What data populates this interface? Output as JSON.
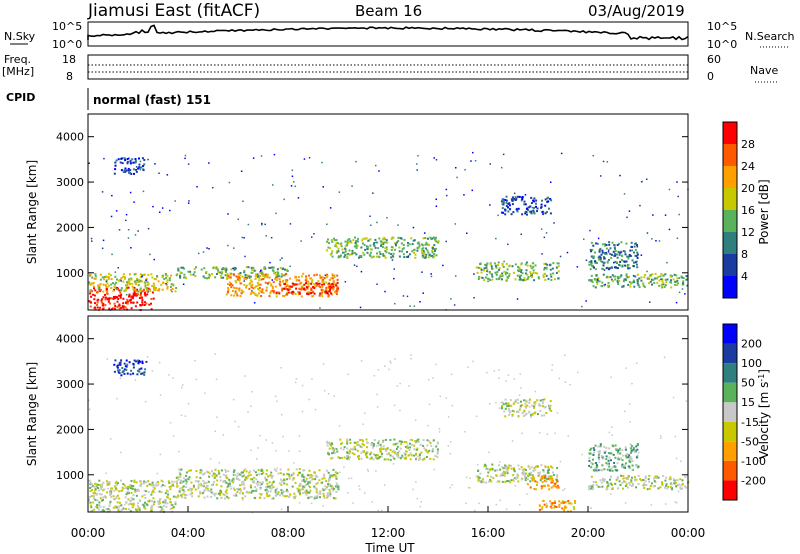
{
  "header": {
    "station": "Jiamusi East (fitACF)",
    "beam": "Beam 16",
    "date": "03/Aug/2019"
  },
  "top_panels": {
    "nsky_label": "N.Sky",
    "nsearch_label": "N.Search",
    "left_ticks": [
      "10^5",
      "10^0"
    ],
    "right_ticks": [
      "10^5",
      "10^0"
    ],
    "freq_label": "Freq.",
    "freq_unit": "[MHz]",
    "freq_ticks": [
      "18",
      "8"
    ],
    "nave_label": "Nave",
    "nave_ticks": [
      "60",
      "0"
    ],
    "cpid_label": "CPID",
    "cpid_value": "normal (fast) 151"
  },
  "chart_data": [
    {
      "type": "heatmap",
      "name": "power",
      "ylabel": "Slant Range [km]",
      "yticks": [
        1000,
        2000,
        3000,
        4000
      ],
      "ylim": [
        180,
        4500
      ],
      "xlim": [
        0,
        24
      ],
      "colorbar": {
        "label": "Power [dB]",
        "ticks": [
          "4",
          "8",
          "12",
          "16",
          "20",
          "24",
          "28"
        ],
        "colors": [
          "#0000ff",
          "#1a3ca0",
          "#2f7f7f",
          "#5ab35a",
          "#c8c800",
          "#ffa000",
          "#ff5a00",
          "#ff0000"
        ]
      },
      "echo_regions": [
        {
          "t0": 0.0,
          "t1": 2.6,
          "r0": 200,
          "r1": 700,
          "level": 7
        },
        {
          "t0": 0.0,
          "t1": 3.5,
          "r0": 600,
          "r1": 1000,
          "level": 4
        },
        {
          "t0": 3.5,
          "t1": 8.0,
          "r0": 900,
          "r1": 1150,
          "level": 3
        },
        {
          "t0": 5.5,
          "t1": 10.0,
          "r0": 500,
          "r1": 1000,
          "level": 5
        },
        {
          "t0": 7.5,
          "t1": 10.0,
          "r0": 550,
          "r1": 800,
          "level": 7
        },
        {
          "t0": 9.5,
          "t1": 14.0,
          "r0": 1350,
          "r1": 1800,
          "level": 3
        },
        {
          "t0": 15.5,
          "t1": 18.8,
          "r0": 850,
          "r1": 1250,
          "level": 3
        },
        {
          "t0": 16.5,
          "t1": 18.5,
          "r0": 2300,
          "r1": 2700,
          "level": 1
        },
        {
          "t0": 20.0,
          "t1": 24.0,
          "r0": 700,
          "r1": 1000,
          "level": 3
        },
        {
          "t0": 20.0,
          "t1": 22.0,
          "r0": 1100,
          "r1": 1700,
          "level": 2
        },
        {
          "t0": 1.0,
          "t1": 2.3,
          "r0": 3200,
          "r1": 3550,
          "level": 1
        }
      ]
    },
    {
      "type": "heatmap",
      "name": "velocity",
      "ylabel": "Slant Range [km]",
      "yticks": [
        1000,
        2000,
        3000,
        4000
      ],
      "ylim": [
        180,
        4500
      ],
      "xlim": [
        0,
        24
      ],
      "xlabel": "Time UT",
      "xticks": [
        "00:00",
        "04:00",
        "08:00",
        "12:00",
        "16:00",
        "20:00",
        "00:00"
      ],
      "colorbar": {
        "label": "Velocity [m s",
        "label_sup": "-1",
        "label_end": "]",
        "ticks": [
          "-200",
          "-100",
          "-50",
          "-15",
          "15",
          "50",
          "100",
          "200"
        ],
        "colors": [
          "#ff0000",
          "#ff5a00",
          "#ffa000",
          "#c8c800",
          "#c8c8c8",
          "#5ab35a",
          "#2f7f7f",
          "#1a3ca0",
          "#0000ff"
        ]
      },
      "echo_regions": [
        {
          "t0": 0.0,
          "t1": 3.5,
          "r0": 200,
          "r1": 900,
          "level": 4
        },
        {
          "t0": 3.5,
          "t1": 10.0,
          "r0": 500,
          "r1": 1150,
          "level": 4
        },
        {
          "t0": 9.5,
          "t1": 14.0,
          "r0": 1350,
          "r1": 1800,
          "level": 4
        },
        {
          "t0": 15.5,
          "t1": 18.8,
          "r0": 850,
          "r1": 1250,
          "level": 4
        },
        {
          "t0": 17.5,
          "t1": 18.8,
          "r0": 700,
          "r1": 1000,
          "level": 2
        },
        {
          "t0": 16.5,
          "t1": 18.5,
          "r0": 2300,
          "r1": 2700,
          "level": 4
        },
        {
          "t0": 20.0,
          "t1": 24.0,
          "r0": 700,
          "r1": 1000,
          "level": 4
        },
        {
          "t0": 20.0,
          "t1": 22.0,
          "r0": 1100,
          "r1": 1700,
          "level": 5
        },
        {
          "t0": 18.0,
          "t1": 19.5,
          "r0": 200,
          "r1": 450,
          "level": 2
        },
        {
          "t0": 1.0,
          "t1": 2.3,
          "r0": 3200,
          "r1": 3550,
          "level": 7
        }
      ]
    }
  ]
}
